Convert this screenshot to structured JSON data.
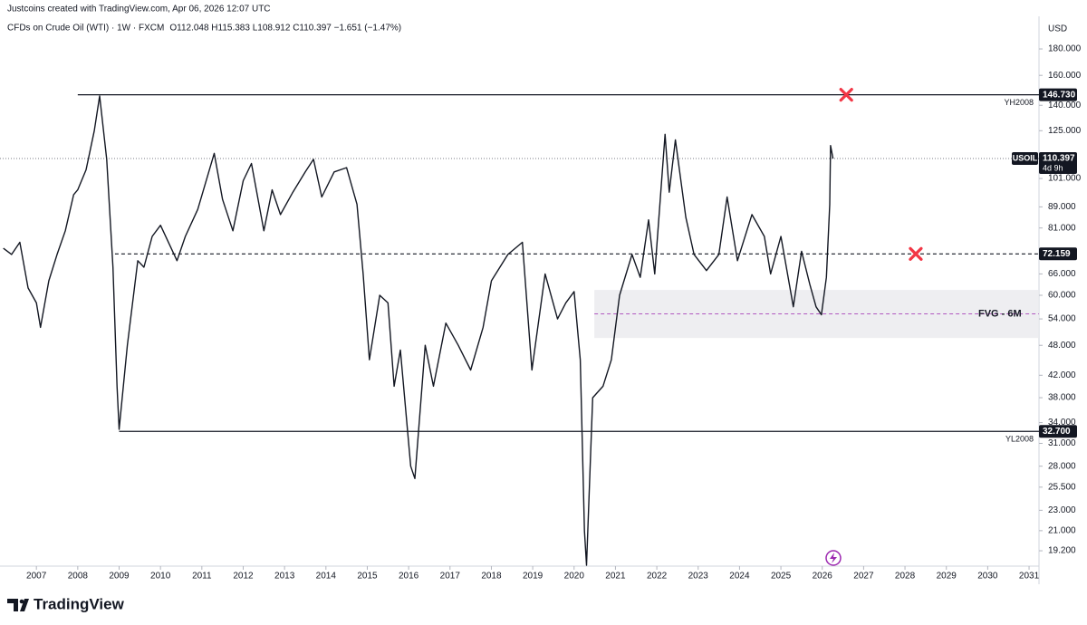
{
  "chart_data": {
    "type": "line",
    "subtitle": "Justcoins created with TradingView.com, Apr 06, 2026 12:07 UTC",
    "title": "CFDs on Crude Oil (WTI) · 1W · FXCM",
    "ohlc": "O112.048 H115.383 L108.912 C110.397 −1.651 (−1.47%)",
    "currency": "USD",
    "brand": "TradingView",
    "log_scale": true,
    "xlim": [
      2006.12,
      2031.24
    ],
    "xticks": [
      2007,
      2008,
      2009,
      2010,
      2011,
      2012,
      2013,
      2014,
      2015,
      2016,
      2017,
      2018,
      2019,
      2020,
      2021,
      2022,
      2023,
      2024,
      2025,
      2026,
      2027,
      2028,
      2029,
      2030,
      2031
    ],
    "ylim": [
      17.93,
      208.2
    ],
    "yticks": [
      {
        "value": 180,
        "label": "180.000"
      },
      {
        "value": 160,
        "label": "160.000"
      },
      {
        "value": 140,
        "label": "140.000"
      },
      {
        "value": 125,
        "label": "125.000"
      },
      {
        "value": 101,
        "label": "101.000"
      },
      {
        "value": 89,
        "label": "89.000"
      },
      {
        "value": 81,
        "label": "81.000"
      },
      {
        "value": 66,
        "label": "66.000"
      },
      {
        "value": 60,
        "label": "60.000"
      },
      {
        "value": 54,
        "label": "54.000"
      },
      {
        "value": 48,
        "label": "48.000"
      },
      {
        "value": 42,
        "label": "42.000"
      },
      {
        "value": 38,
        "label": "38.000"
      },
      {
        "value": 34,
        "label": "34.000"
      },
      {
        "value": 31,
        "label": "31.000"
      },
      {
        "value": 28,
        "label": "28.000"
      },
      {
        "value": 25.5,
        "label": "25.500"
      },
      {
        "value": 23,
        "label": "23.000"
      },
      {
        "value": 21,
        "label": "21.000"
      },
      {
        "value": 19.2,
        "label": "19.200"
      }
    ],
    "series": [
      {
        "name": "USOIL",
        "color": "#131722",
        "x": [
          2006.2,
          2006.4,
          2006.6,
          2006.8,
          2007.0,
          2007.1,
          2007.3,
          2007.5,
          2007.7,
          2007.9,
          2008.0,
          2008.2,
          2008.4,
          2008.53,
          2008.7,
          2008.85,
          2008.95,
          2009.0,
          2009.2,
          2009.45,
          2009.6,
          2009.8,
          2010.0,
          2010.4,
          2010.6,
          2010.9,
          2011.3,
          2011.5,
          2011.75,
          2012.0,
          2012.2,
          2012.5,
          2012.7,
          2012.9,
          2013.2,
          2013.5,
          2013.7,
          2013.9,
          2014.2,
          2014.5,
          2014.75,
          2014.9,
          2015.05,
          2015.3,
          2015.5,
          2015.65,
          2015.8,
          2016.05,
          2016.15,
          2016.4,
          2016.6,
          2016.9,
          2017.2,
          2017.5,
          2017.8,
          2018.0,
          2018.4,
          2018.75,
          2018.98,
          2019.3,
          2019.6,
          2019.8,
          2020.0,
          2020.15,
          2020.25,
          2020.3,
          2020.45,
          2020.7,
          2020.9,
          2021.1,
          2021.4,
          2021.6,
          2021.8,
          2021.95,
          2022.2,
          2022.3,
          2022.45,
          2022.7,
          2022.9,
          2023.2,
          2023.5,
          2023.7,
          2023.95,
          2024.3,
          2024.6,
          2024.75,
          2025.0,
          2025.3,
          2025.5,
          2025.7,
          2025.85,
          2025.98,
          2026.1,
          2026.18,
          2026.2,
          2026.26
        ],
        "values": [
          74,
          72,
          76,
          62,
          58,
          52,
          64,
          72,
          80,
          94,
          96,
          105,
          125,
          146,
          110,
          68,
          40,
          33,
          48,
          70,
          68,
          78,
          82,
          70,
          78,
          88,
          113,
          92,
          80,
          100,
          108,
          80,
          96,
          86,
          95,
          104,
          110,
          93,
          104,
          106,
          90,
          66,
          45,
          60,
          58,
          40,
          47,
          28,
          26.5,
          48,
          40,
          53,
          48,
          43,
          52,
          64,
          72,
          76,
          43,
          66,
          54,
          58,
          61,
          45,
          21,
          18,
          38,
          40,
          45,
          60,
          72,
          65,
          84,
          66,
          123,
          95,
          120,
          85,
          72,
          67,
          72,
          93,
          70,
          86,
          78,
          66,
          78,
          57,
          73,
          63,
          57,
          55,
          65,
          90,
          117,
          110.4
        ]
      }
    ],
    "current": {
      "name": "USOIL",
      "value": 110.397,
      "countdown": "4d 9h"
    },
    "levels": [
      {
        "name": "YH2008",
        "value": 146.73,
        "label": "146.730",
        "start": 2008.0,
        "style": "solid"
      },
      {
        "value": 72.159,
        "start": 2008.9,
        "style": "dashed"
      },
      {
        "name": "YL2008",
        "value": 32.7,
        "label": "32.700",
        "start": 2009.0,
        "style": "solid"
      }
    ],
    "zone": {
      "name": "FVG - 6M",
      "low": 49.6,
      "high": 61.45,
      "mid": 55.2,
      "start": 2020.49
    },
    "markers": [
      {
        "x": 2026.58,
        "value": 146.73
      },
      {
        "x": 2028.26,
        "value": 72.159
      }
    ],
    "marker_color": "#f23645"
  }
}
